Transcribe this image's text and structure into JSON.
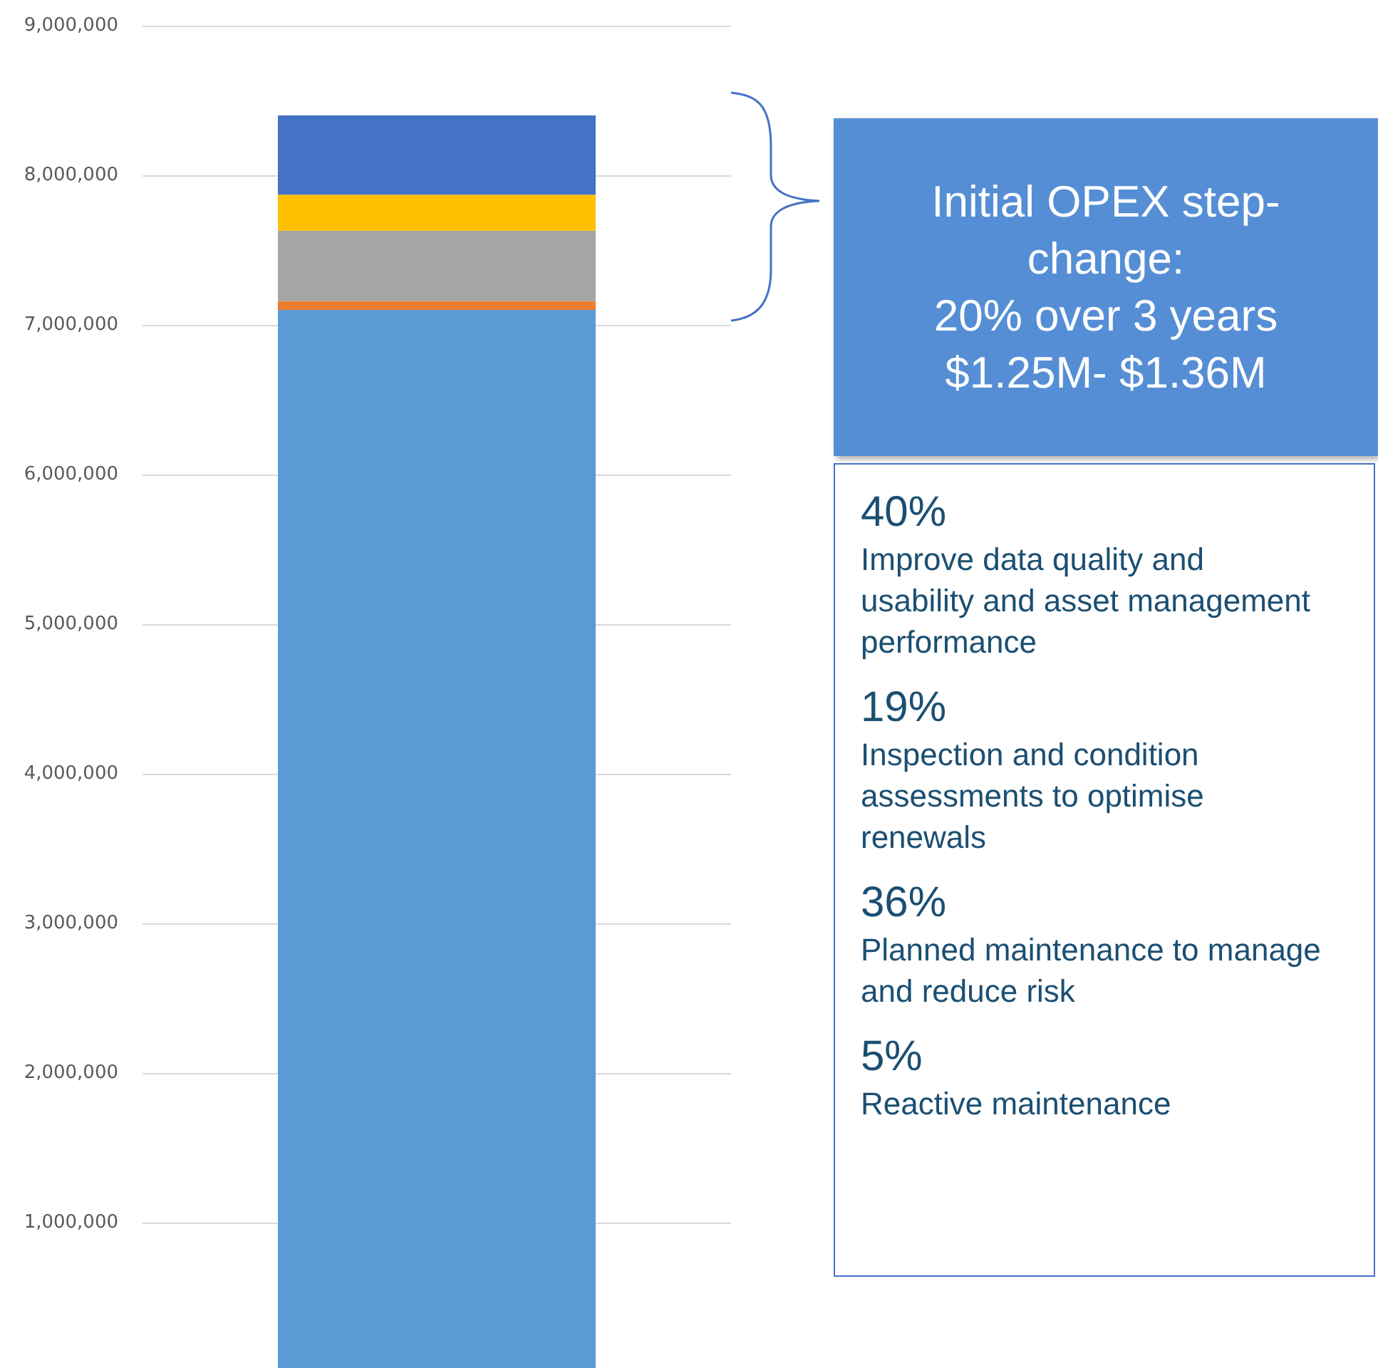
{
  "chart_data": {
    "type": "bar",
    "stacked": true,
    "categories": [
      null
    ],
    "series": [
      {
        "color": "#5b9bd5",
        "values": [
          7100000
        ]
      },
      {
        "color": "#ed7d31",
        "values": [
          60000
        ]
      },
      {
        "color": "#a5a5a5",
        "values": [
          470000
        ]
      },
      {
        "color": "#ffc000",
        "values": [
          240000
        ]
      },
      {
        "color": "#4472c4",
        "values": [
          530000
        ]
      }
    ],
    "ylim": [
      0,
      9000000
    ],
    "yticks": [
      {
        "value": 1000000,
        "label": "1,000,000"
      },
      {
        "value": 2000000,
        "label": "2,000,000"
      },
      {
        "value": 3000000,
        "label": "3,000,000"
      },
      {
        "value": 4000000,
        "label": "4,000,000"
      },
      {
        "value": 5000000,
        "label": "5,000,000"
      },
      {
        "value": 6000000,
        "label": "6,000,000"
      },
      {
        "value": 7000000,
        "label": "7,000,000"
      },
      {
        "value": 8000000,
        "label": "8,000,000"
      },
      {
        "value": 9000000,
        "label": "9,000,000"
      }
    ],
    "grid": "y",
    "annotations": [
      "Initial OPEX step-change:",
      "20% over 3 years",
      "$1.25M- $1.36M",
      "40%",
      "Improve data quality and usability and asset management performance",
      "19%",
      "Inspection and condition assessments to optimise renewals",
      "36%",
      "Planned maintenance to manage and reduce risk",
      "5%",
      "Reactive maintenance"
    ]
  }
}
